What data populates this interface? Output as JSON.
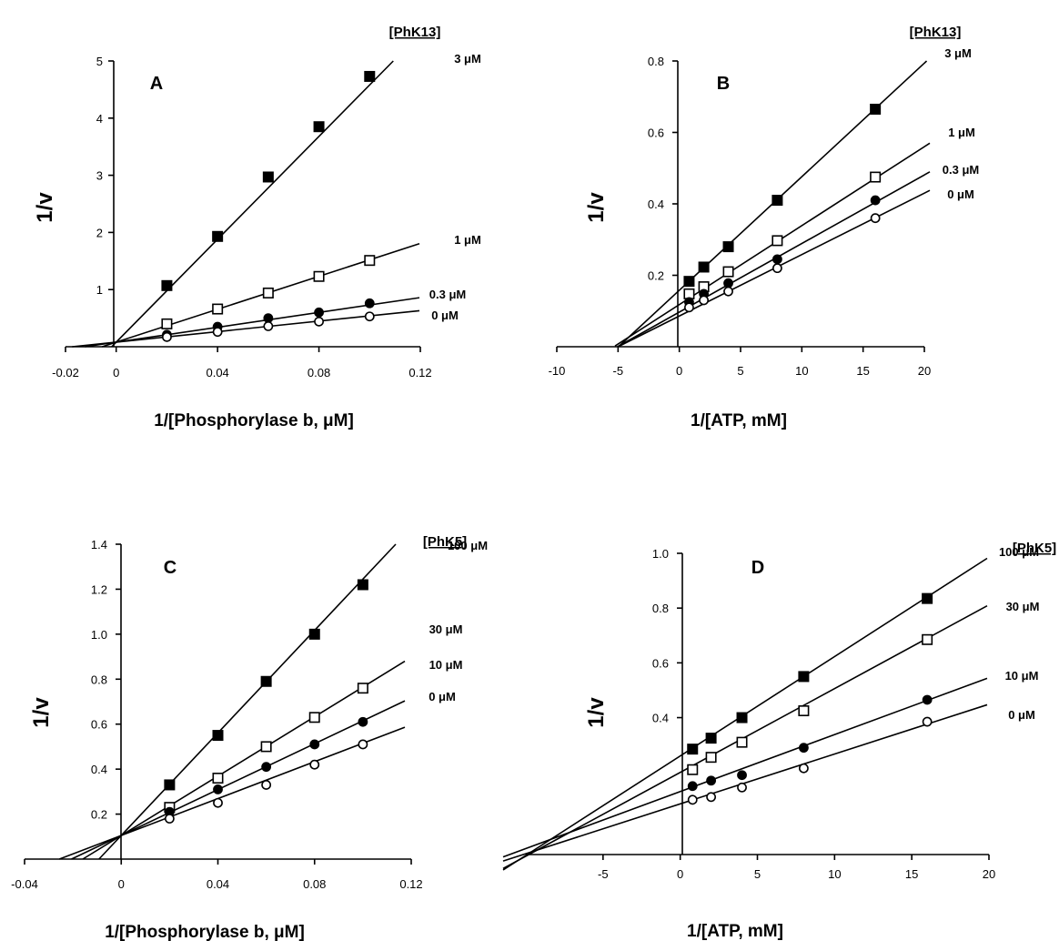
{
  "chart_data": [
    {
      "type": "line",
      "panel": "A",
      "legend_title": "[PhK13]",
      "xlabel": "1/[Phosphorylase b, μM]",
      "ylabel": "1/v",
      "xticks": [
        "-0.02",
        "0",
        "0.04",
        "0.08",
        "0.12"
      ],
      "yticks": [
        "1",
        "2",
        "3",
        "4",
        "5"
      ],
      "xlim": [
        -0.02,
        0.12
      ],
      "ylim": [
        0,
        5
      ],
      "series": [
        {
          "name": "3 μM",
          "marker": "filled-square",
          "x": [
            0.02,
            0.04,
            0.06,
            0.08,
            0.1
          ],
          "y": [
            1.07,
            1.93,
            2.97,
            3.85,
            4.73
          ],
          "fit": {
            "slope": 45.0,
            "intercept": 0.08
          }
        },
        {
          "name": "1 μM",
          "marker": "open-square",
          "x": [
            0.02,
            0.04,
            0.06,
            0.08,
            0.1
          ],
          "y": [
            0.4,
            0.66,
            0.94,
            1.23,
            1.51
          ],
          "fit": {
            "slope": 14.4,
            "intercept": 0.08
          }
        },
        {
          "name": "0.3 μM",
          "marker": "filled-circle",
          "x": [
            0.02,
            0.04,
            0.06,
            0.08,
            0.1
          ],
          "y": [
            0.21,
            0.35,
            0.5,
            0.6,
            0.76
          ],
          "fit": {
            "slope": 6.5,
            "intercept": 0.08
          }
        },
        {
          "name": "0 μM",
          "marker": "open-circle",
          "x": [
            0.02,
            0.04,
            0.06,
            0.08,
            0.1
          ],
          "y": [
            0.17,
            0.26,
            0.36,
            0.44,
            0.53
          ],
          "fit": {
            "slope": 4.6,
            "intercept": 0.08
          }
        }
      ]
    },
    {
      "type": "line",
      "panel": "B",
      "legend_title": "[PhK13]",
      "xlabel": "1/[ATP, mM]",
      "ylabel": "1/v",
      "xticks": [
        "-10",
        "-5",
        "0",
        "5",
        "10",
        "15",
        "20"
      ],
      "yticks": [
        "0.2",
        "0.4",
        "0.6",
        "0.8"
      ],
      "xlim": [
        -10,
        20
      ],
      "ylim": [
        0,
        0.8
      ],
      "series": [
        {
          "name": "3 μM",
          "marker": "filled-square",
          "x": [
            0.8,
            2,
            4,
            8,
            16
          ],
          "y": [
            0.183,
            0.223,
            0.28,
            0.41,
            0.665
          ],
          "fit": {
            "slope": 0.0318,
            "intercept": 0.158
          }
        },
        {
          "name": "1 μM",
          "marker": "open-square",
          "x": [
            0.8,
            2,
            4,
            8,
            16
          ],
          "y": [
            0.148,
            0.168,
            0.21,
            0.297,
            0.475
          ],
          "fit": {
            "slope": 0.0221,
            "intercept": 0.118
          }
        },
        {
          "name": "0.3 μM",
          "marker": "filled-circle",
          "x": [
            0.8,
            2,
            4,
            8,
            16
          ],
          "y": [
            0.125,
            0.148,
            0.178,
            0.245,
            0.41
          ],
          "fit": {
            "slope": 0.0192,
            "intercept": 0.097
          }
        },
        {
          "name": "0 μM",
          "marker": "open-circle",
          "x": [
            0.8,
            2,
            4,
            8,
            16
          ],
          "y": [
            0.11,
            0.13,
            0.155,
            0.22,
            0.36
          ],
          "fit": {
            "slope": 0.0172,
            "intercept": 0.086
          }
        }
      ]
    },
    {
      "type": "line",
      "panel": "C",
      "legend_title": "[PhK5]",
      "xlabel": "1/[Phosphorylase b, μM]",
      "ylabel": "1/v",
      "xticks": [
        "-0.04",
        "0",
        "0.04",
        "0.08",
        "0.12"
      ],
      "yticks": [
        "0.2",
        "0.4",
        "0.6",
        "0.8",
        "1.0",
        "1.2",
        "1.4"
      ],
      "xlim": [
        -0.04,
        0.12
      ],
      "ylim": [
        0,
        1.4
      ],
      "series": [
        {
          "name": "100 μM",
          "marker": "filled-square",
          "x": [
            0.02,
            0.04,
            0.06,
            0.08,
            0.1
          ],
          "y": [
            0.33,
            0.55,
            0.79,
            1.0,
            1.22
          ],
          "fit": {
            "slope": 11.4,
            "intercept": 0.105
          }
        },
        {
          "name": "30 μM",
          "marker": "open-square",
          "x": [
            0.02,
            0.04,
            0.06,
            0.08,
            0.1
          ],
          "y": [
            0.23,
            0.36,
            0.5,
            0.63,
            0.76
          ],
          "fit": {
            "slope": 6.6,
            "intercept": 0.105
          }
        },
        {
          "name": "10 μM",
          "marker": "filled-circle",
          "x": [
            0.02,
            0.04,
            0.06,
            0.08,
            0.1
          ],
          "y": [
            0.21,
            0.31,
            0.41,
            0.51,
            0.61
          ],
          "fit": {
            "slope": 5.1,
            "intercept": 0.105
          }
        },
        {
          "name": "0 μM",
          "marker": "open-circle",
          "x": [
            0.02,
            0.04,
            0.06,
            0.08,
            0.1
          ],
          "y": [
            0.18,
            0.25,
            0.33,
            0.42,
            0.51
          ],
          "fit": {
            "slope": 4.1,
            "intercept": 0.105
          }
        }
      ]
    },
    {
      "type": "line",
      "panel": "D",
      "legend_title": "[PhK5]",
      "xlabel": "1/[ATP, mM]",
      "ylabel": "1/v",
      "xticks": [
        "-5",
        "0",
        "5",
        "10",
        "15",
        "20"
      ],
      "yticks": [
        "0.4",
        "0.6",
        "0.8",
        "1.0"
      ],
      "xlim": [
        -10,
        20
      ],
      "ylim": [
        -0.1,
        1.0
      ],
      "series": [
        {
          "name": "100 μM",
          "marker": "filled-square",
          "x": [
            0.8,
            2,
            4,
            8,
            16
          ],
          "y": [
            0.285,
            0.325,
            0.4,
            0.55,
            0.835
          ],
          "fit": {
            "slope": 0.0363,
            "intercept": 0.26
          }
        },
        {
          "name": "30 μM",
          "marker": "open-square",
          "x": [
            0.8,
            2,
            4,
            8,
            16
          ],
          "y": [
            0.21,
            0.255,
            0.31,
            0.425,
            0.685
          ],
          "fit": {
            "slope": 0.0306,
            "intercept": 0.2
          }
        },
        {
          "name": "10 μM",
          "marker": "filled-circle",
          "x": [
            0.8,
            2,
            4,
            8,
            16
          ],
          "y": [
            0.15,
            0.17,
            0.19,
            0.29,
            0.465
          ],
          "fit": {
            "slope": 0.0208,
            "intercept": 0.13
          }
        },
        {
          "name": "0 μM",
          "marker": "open-circle",
          "x": [
            0.8,
            2,
            4,
            8,
            16
          ],
          "y": [
            0.1,
            0.11,
            0.145,
            0.215,
            0.385
          ],
          "fit": {
            "slope": 0.0182,
            "intercept": 0.085
          }
        }
      ]
    }
  ]
}
